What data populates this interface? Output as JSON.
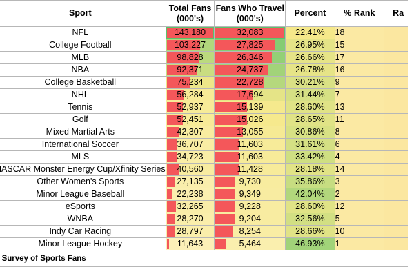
{
  "headers": {
    "sport": "Sport",
    "total_fans": "Total Fans",
    "total_fans_unit": "(000's)",
    "fans_travel": "Fans Who Travel",
    "fans_travel_unit": "(000's)",
    "percent": "Percent",
    "rank": "% Rank",
    "last": "Ra"
  },
  "rows": [
    {
      "sport": "NFL",
      "total_fans": "143,180",
      "fans_travel": "32,083",
      "percent": "22.41%",
      "rank": "18"
    },
    {
      "sport": "College Football",
      "total_fans": "103,227",
      "fans_travel": "27,825",
      "percent": "26.95%",
      "rank": "15"
    },
    {
      "sport": "MLB",
      "total_fans": "98,828",
      "fans_travel": "26,346",
      "percent": "26.66%",
      "rank": "17"
    },
    {
      "sport": "NBA",
      "total_fans": "92,371",
      "fans_travel": "24,737",
      "percent": "26.78%",
      "rank": "16"
    },
    {
      "sport": "College Basketball",
      "total_fans": "75,234",
      "fans_travel": "22,728",
      "percent": "30.21%",
      "rank": "9"
    },
    {
      "sport": "NHL",
      "total_fans": "56,284",
      "fans_travel": "17,694",
      "percent": "31.44%",
      "rank": "7"
    },
    {
      "sport": "Tennis",
      "total_fans": "52,937",
      "fans_travel": "15,139",
      "percent": "28.60%",
      "rank": "13"
    },
    {
      "sport": "Golf",
      "total_fans": "52,451",
      "fans_travel": "15,026",
      "percent": "28.65%",
      "rank": "11"
    },
    {
      "sport": "Mixed Martial Arts",
      "total_fans": "42,307",
      "fans_travel": "13,055",
      "percent": "30.86%",
      "rank": "8"
    },
    {
      "sport": "International Soccer",
      "total_fans": "36,707",
      "fans_travel": "11,603",
      "percent": "31.61%",
      "rank": "6"
    },
    {
      "sport": "MLS",
      "total_fans": "34,723",
      "fans_travel": "11,603",
      "percent": "33.42%",
      "rank": "4"
    },
    {
      "sport": "NASCAR Monster Energy Cup/Xfinity Series",
      "total_fans": "40,560",
      "fans_travel": "11,428",
      "percent": "28.18%",
      "rank": "14"
    },
    {
      "sport": "Other Women's Sports",
      "total_fans": "27,135",
      "fans_travel": "9,730",
      "percent": "35.86%",
      "rank": "3"
    },
    {
      "sport": "Minor League Baseball",
      "total_fans": "22,238",
      "fans_travel": "9,349",
      "percent": "42.04%",
      "rank": "2"
    },
    {
      "sport": "eSports",
      "total_fans": "32,265",
      "fans_travel": "9,228",
      "percent": "28.60%",
      "rank": "12"
    },
    {
      "sport": "WNBA",
      "total_fans": "28,270",
      "fans_travel": "9,204",
      "percent": "32.56%",
      "rank": "5"
    },
    {
      "sport": "Indy Car Racing",
      "total_fans": "28,797",
      "fans_travel": "8,254",
      "percent": "28.66%",
      "rank": "10"
    },
    {
      "sport": "Minor League Hockey",
      "total_fans": "11,643",
      "fans_travel": "5,464",
      "percent": "46.93%",
      "rank": "1"
    }
  ],
  "footer": "2 Survey of Sports Fans",
  "scale": {
    "total_fans_max": 143180,
    "fans_travel_max": 32083,
    "percent_min": 22.41,
    "percent_max": 46.93
  },
  "colors": {
    "bar": "#f4575a",
    "high": "#5cc26b",
    "mid": "#f5e88a",
    "low": "#fdf2c0"
  }
}
